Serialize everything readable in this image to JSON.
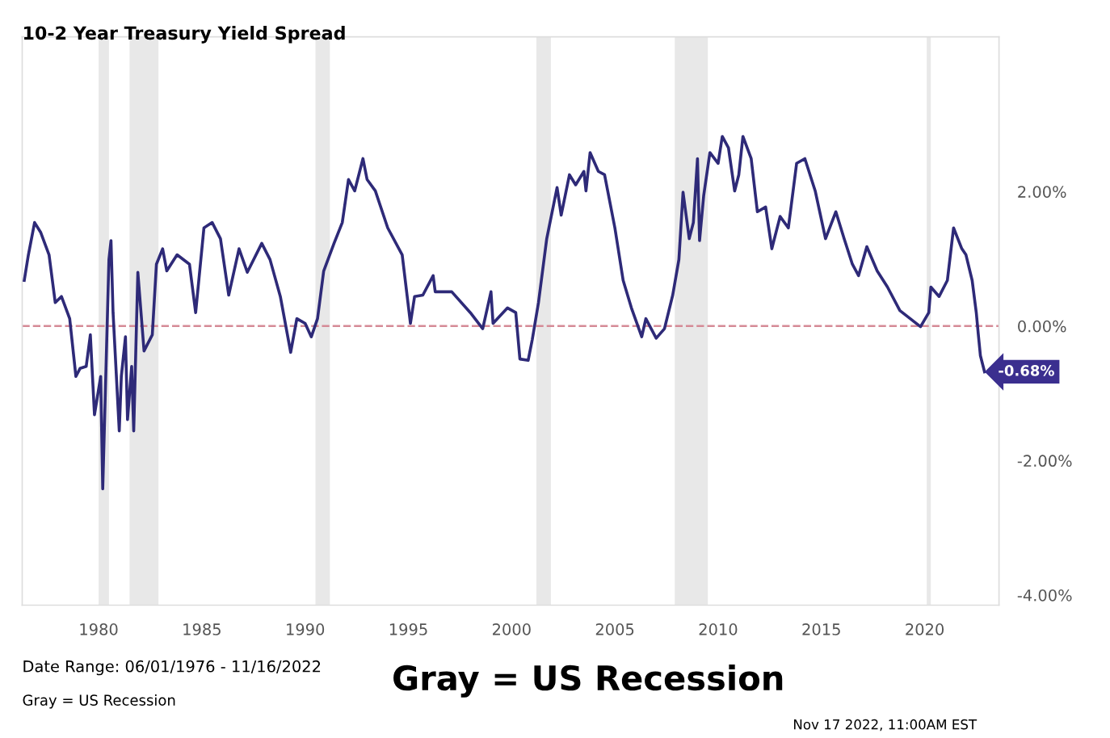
{
  "chart_data": {
    "type": "line",
    "title": "10-2 Year Treasury Yield Spread",
    "series": [
      {
        "color": "#2e2a78",
        "x": [
          1976.4,
          1976.6,
          1976.9,
          1977.2,
          1977.6,
          1977.9,
          1978.2,
          1978.6,
          1978.9,
          1979.1,
          1979.4,
          1979.6,
          1979.8,
          1980.1,
          1980.2,
          1980.5,
          1980.6,
          1980.7,
          1981.0,
          1981.1,
          1981.3,
          1981.4,
          1981.6,
          1981.7,
          1981.9,
          1982.2,
          1982.6,
          1982.8,
          1983.1,
          1983.3,
          1983.8,
          1984.4,
          1984.7,
          1985.1,
          1985.5,
          1985.9,
          1986.3,
          1986.8,
          1987.2,
          1987.9,
          1988.3,
          1988.8,
          1989.3,
          1989.6,
          1990.0,
          1990.3,
          1990.6,
          1990.9,
          1991.4,
          1991.8,
          1992.1,
          1992.4,
          1992.8,
          1993.0,
          1993.4,
          1994.0,
          1994.7,
          1995.1,
          1995.3,
          1995.7,
          1996.2,
          1996.3,
          1997.1,
          1998.0,
          1998.6,
          1999.0,
          1999.1,
          1999.8,
          2000.2,
          2000.4,
          2000.8,
          2001.0,
          2001.3,
          2001.7,
          2002.2,
          2002.4,
          2002.8,
          2003.1,
          2003.5,
          2003.6,
          2003.8,
          2004.2,
          2004.5,
          2005.0,
          2005.4,
          2005.8,
          2006.3,
          2006.5,
          2007.0,
          2007.4,
          2007.8,
          2008.1,
          2008.3,
          2008.6,
          2008.8,
          2009.0,
          2009.1,
          2009.3,
          2009.6,
          2010.0,
          2010.2,
          2010.5,
          2010.8,
          2011.0,
          2011.2,
          2011.6,
          2011.9,
          2012.3,
          2012.6,
          2013.0,
          2013.4,
          2013.8,
          2014.2,
          2014.7,
          2015.2,
          2015.7,
          2016.1,
          2016.5,
          2016.8,
          2017.2,
          2017.7,
          2018.2,
          2018.8,
          2019.3,
          2019.8,
          2020.2,
          2020.3,
          2020.7,
          2021.1,
          2021.4,
          2021.8,
          2022.0,
          2022.3,
          2022.5,
          2022.6,
          2022.7,
          2022.9
        ],
        "values": [
          0.68,
          1.06,
          1.54,
          1.39,
          1.06,
          0.35,
          0.44,
          0.11,
          -0.75,
          -0.63,
          -0.6,
          -0.13,
          -1.32,
          -0.75,
          -2.42,
          0.99,
          1.27,
          0.2,
          -1.56,
          -0.75,
          -0.16,
          -1.39,
          -0.6,
          -1.56,
          0.8,
          -0.37,
          -0.13,
          0.92,
          1.15,
          0.82,
          1.06,
          0.92,
          0.2,
          1.46,
          1.54,
          1.3,
          0.46,
          1.15,
          0.8,
          1.23,
          0.99,
          0.44,
          -0.39,
          0.11,
          0.04,
          -0.16,
          0.11,
          0.82,
          1.23,
          1.54,
          2.18,
          2.01,
          2.49,
          2.18,
          2.01,
          1.46,
          1.06,
          0.04,
          0.44,
          0.46,
          0.75,
          0.51,
          0.51,
          0.2,
          -0.04,
          0.51,
          0.04,
          0.27,
          0.2,
          -0.49,
          -0.51,
          -0.2,
          0.35,
          1.3,
          2.06,
          1.65,
          2.25,
          2.1,
          2.3,
          2.01,
          2.58,
          2.3,
          2.25,
          1.46,
          0.68,
          0.27,
          -0.16,
          0.11,
          -0.18,
          -0.04,
          0.46,
          0.99,
          1.99,
          1.3,
          1.54,
          2.49,
          1.27,
          1.94,
          2.58,
          2.42,
          2.82,
          2.65,
          2.01,
          2.25,
          2.82,
          2.49,
          1.7,
          1.77,
          1.15,
          1.63,
          1.46,
          2.42,
          2.49,
          2.01,
          1.3,
          1.7,
          1.3,
          0.92,
          0.75,
          1.18,
          0.82,
          0.58,
          0.23,
          0.11,
          -0.01,
          0.2,
          0.58,
          0.44,
          0.68,
          1.46,
          1.15,
          1.06,
          0.68,
          0.2,
          -0.13,
          -0.44,
          -0.68
        ]
      }
    ],
    "xlim": [
      1976.3,
      2023.6
    ],
    "xticks": [
      1980,
      1985,
      1990,
      1995,
      2000,
      2005,
      2010,
      2015,
      2020
    ],
    "ylim": [
      -4.15,
      4.3
    ],
    "yticks": [
      {
        "value": 2,
        "label": "2.00%"
      },
      {
        "value": 0,
        "label": "0.00%"
      },
      {
        "value": -2,
        "label": "-2.00%"
      },
      {
        "value": -4,
        "label": "-4.00%"
      }
    ],
    "ref_lines": [
      {
        "axis": "y",
        "value": 0,
        "color": "#d58a96",
        "line_style": "dashed"
      }
    ],
    "bands": [
      {
        "axis": "x",
        "from": 1980.0,
        "to": 1980.5,
        "color": "#e8e8e8"
      },
      {
        "axis": "x",
        "from": 1981.5,
        "to": 1982.9,
        "color": "#e8e8e8"
      },
      {
        "axis": "x",
        "from": 1990.5,
        "to": 1991.2,
        "color": "#e8e8e8"
      },
      {
        "axis": "x",
        "from": 2001.2,
        "to": 2001.9,
        "color": "#e8e8e8"
      },
      {
        "axis": "x",
        "from": 2007.9,
        "to": 2009.5,
        "color": "#e8e8e8"
      },
      {
        "axis": "x",
        "from": 2020.1,
        "to": 2020.3,
        "color": "#e8e8e8"
      }
    ],
    "annotations": [
      {
        "text": "-0.68%",
        "x": 2022.9,
        "y": -0.68
      },
      "Date Range: 06/01/1976 - 11/16/2022",
      "Gray = US Recession",
      "Gray = US Recession",
      "Nov 17 2022, 11:00AM EST"
    ],
    "grid": false,
    "legend": false,
    "line_style": "solid",
    "marker": "none"
  }
}
